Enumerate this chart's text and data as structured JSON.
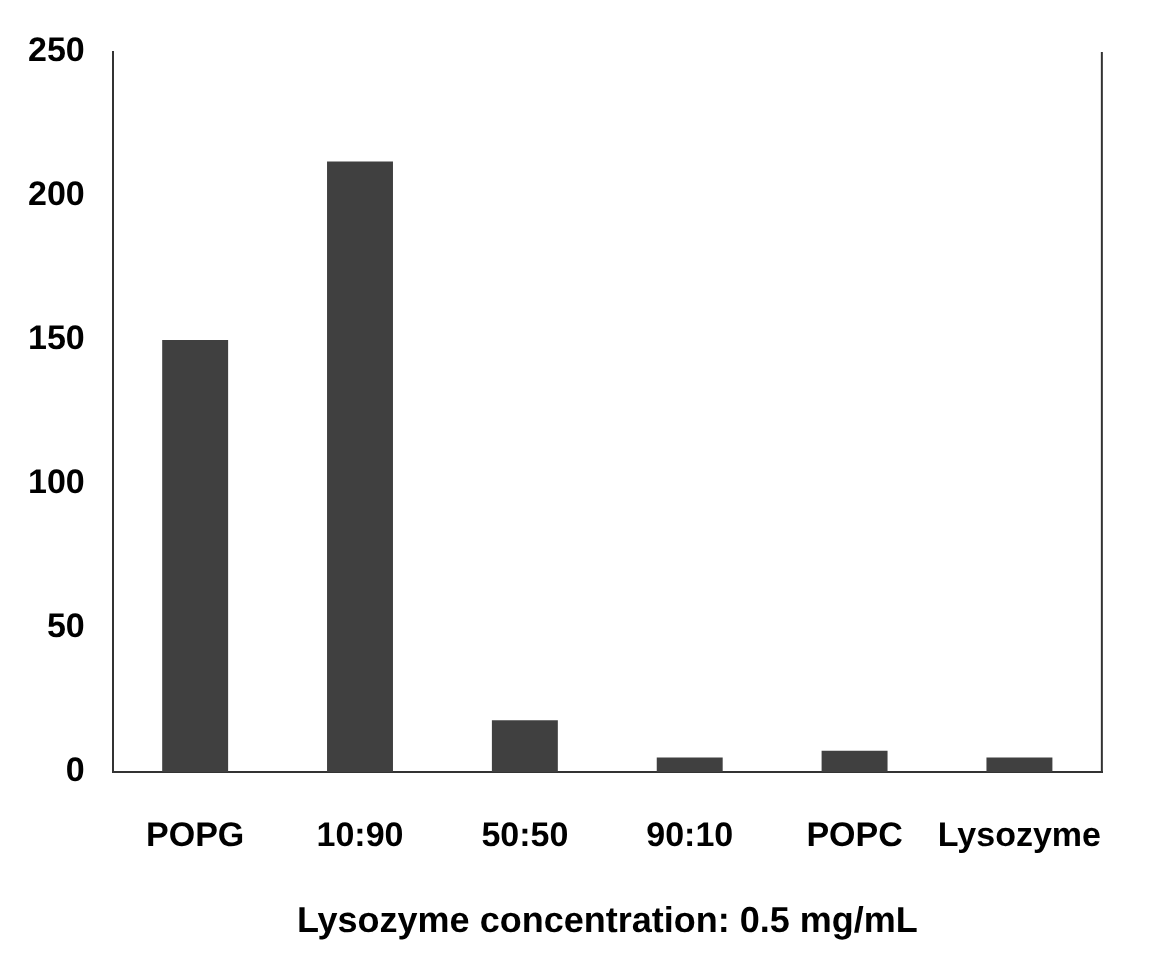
{
  "chart_data": {
    "type": "bar",
    "xlabel": "Lysozyme concentration: 0.5 mg/mL",
    "categories": [
      "POPG",
      "10:90",
      "50:50",
      "90:10",
      "POPC",
      "Lysozyme"
    ],
    "values": [
      150,
      212,
      18,
      5,
      7.4,
      5
    ],
    "color": "#404040",
    "ylim": [
      0,
      250
    ],
    "yticks": [
      0,
      50,
      100,
      150,
      200,
      250
    ],
    "grid": false,
    "legend": false
  }
}
